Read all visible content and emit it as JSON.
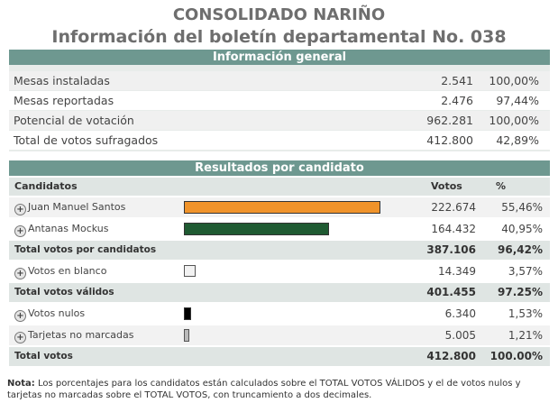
{
  "header": {
    "title": "CONSOLIDADO NARIÑO",
    "subtitle": "Información del boletín departamental No. 038"
  },
  "info": {
    "heading": "Información general",
    "rows": [
      {
        "label": "Mesas instaladas",
        "value": "2.541",
        "pct": "100,00%"
      },
      {
        "label": "Mesas reportadas",
        "value": "2.476",
        "pct": "97,44%"
      },
      {
        "label": "Potencial de votación",
        "value": "962.281",
        "pct": "100,00%"
      },
      {
        "label": "Total de votos sufragados",
        "value": "412.800",
        "pct": "42,89%"
      }
    ]
  },
  "results": {
    "heading": "Resultados por candidato",
    "col_candidates": "Candidatos",
    "col_votes": "Votos",
    "col_pct": "%",
    "candidates": [
      {
        "name": "Juan Manuel Santos",
        "votes": "222.674",
        "pct": "55,46%",
        "share": 55.46,
        "color": "#f0932a"
      },
      {
        "name": "Antanas Mockus",
        "votes": "164.432",
        "pct": "40,95%",
        "share": 40.95,
        "color": "#1f5a32"
      }
    ],
    "total_candidates": {
      "label": "Total votos por candidatos",
      "votes": "387.106",
      "pct": "96,42%"
    },
    "blank": {
      "name": "Votos en blanco",
      "votes": "14.349",
      "pct": "3,57%",
      "color": "#f2f2f2"
    },
    "total_valid": {
      "label": "Total votos válidos",
      "votes": "401.455",
      "pct": "97.25%"
    },
    "null_votes": {
      "name": "Votos nulos",
      "votes": "6.340",
      "pct": "1,53%",
      "color": "#000000"
    },
    "unmarked": {
      "name": "Tarjetas no marcadas",
      "votes": "5.005",
      "pct": "1,21%",
      "color": "#bbbbbb"
    },
    "total": {
      "label": "Total votos",
      "votes": "412.800",
      "pct": "100.00%"
    }
  },
  "note": {
    "label": "Nota:",
    "text": " Los porcentajes para los candidatos están calculados sobre el TOTAL VOTOS VÁLIDOS y el de votos nulos y tarjetas no marcadas sobre el TOTAL VOTOS, con truncamiento a dos decimales."
  }
}
